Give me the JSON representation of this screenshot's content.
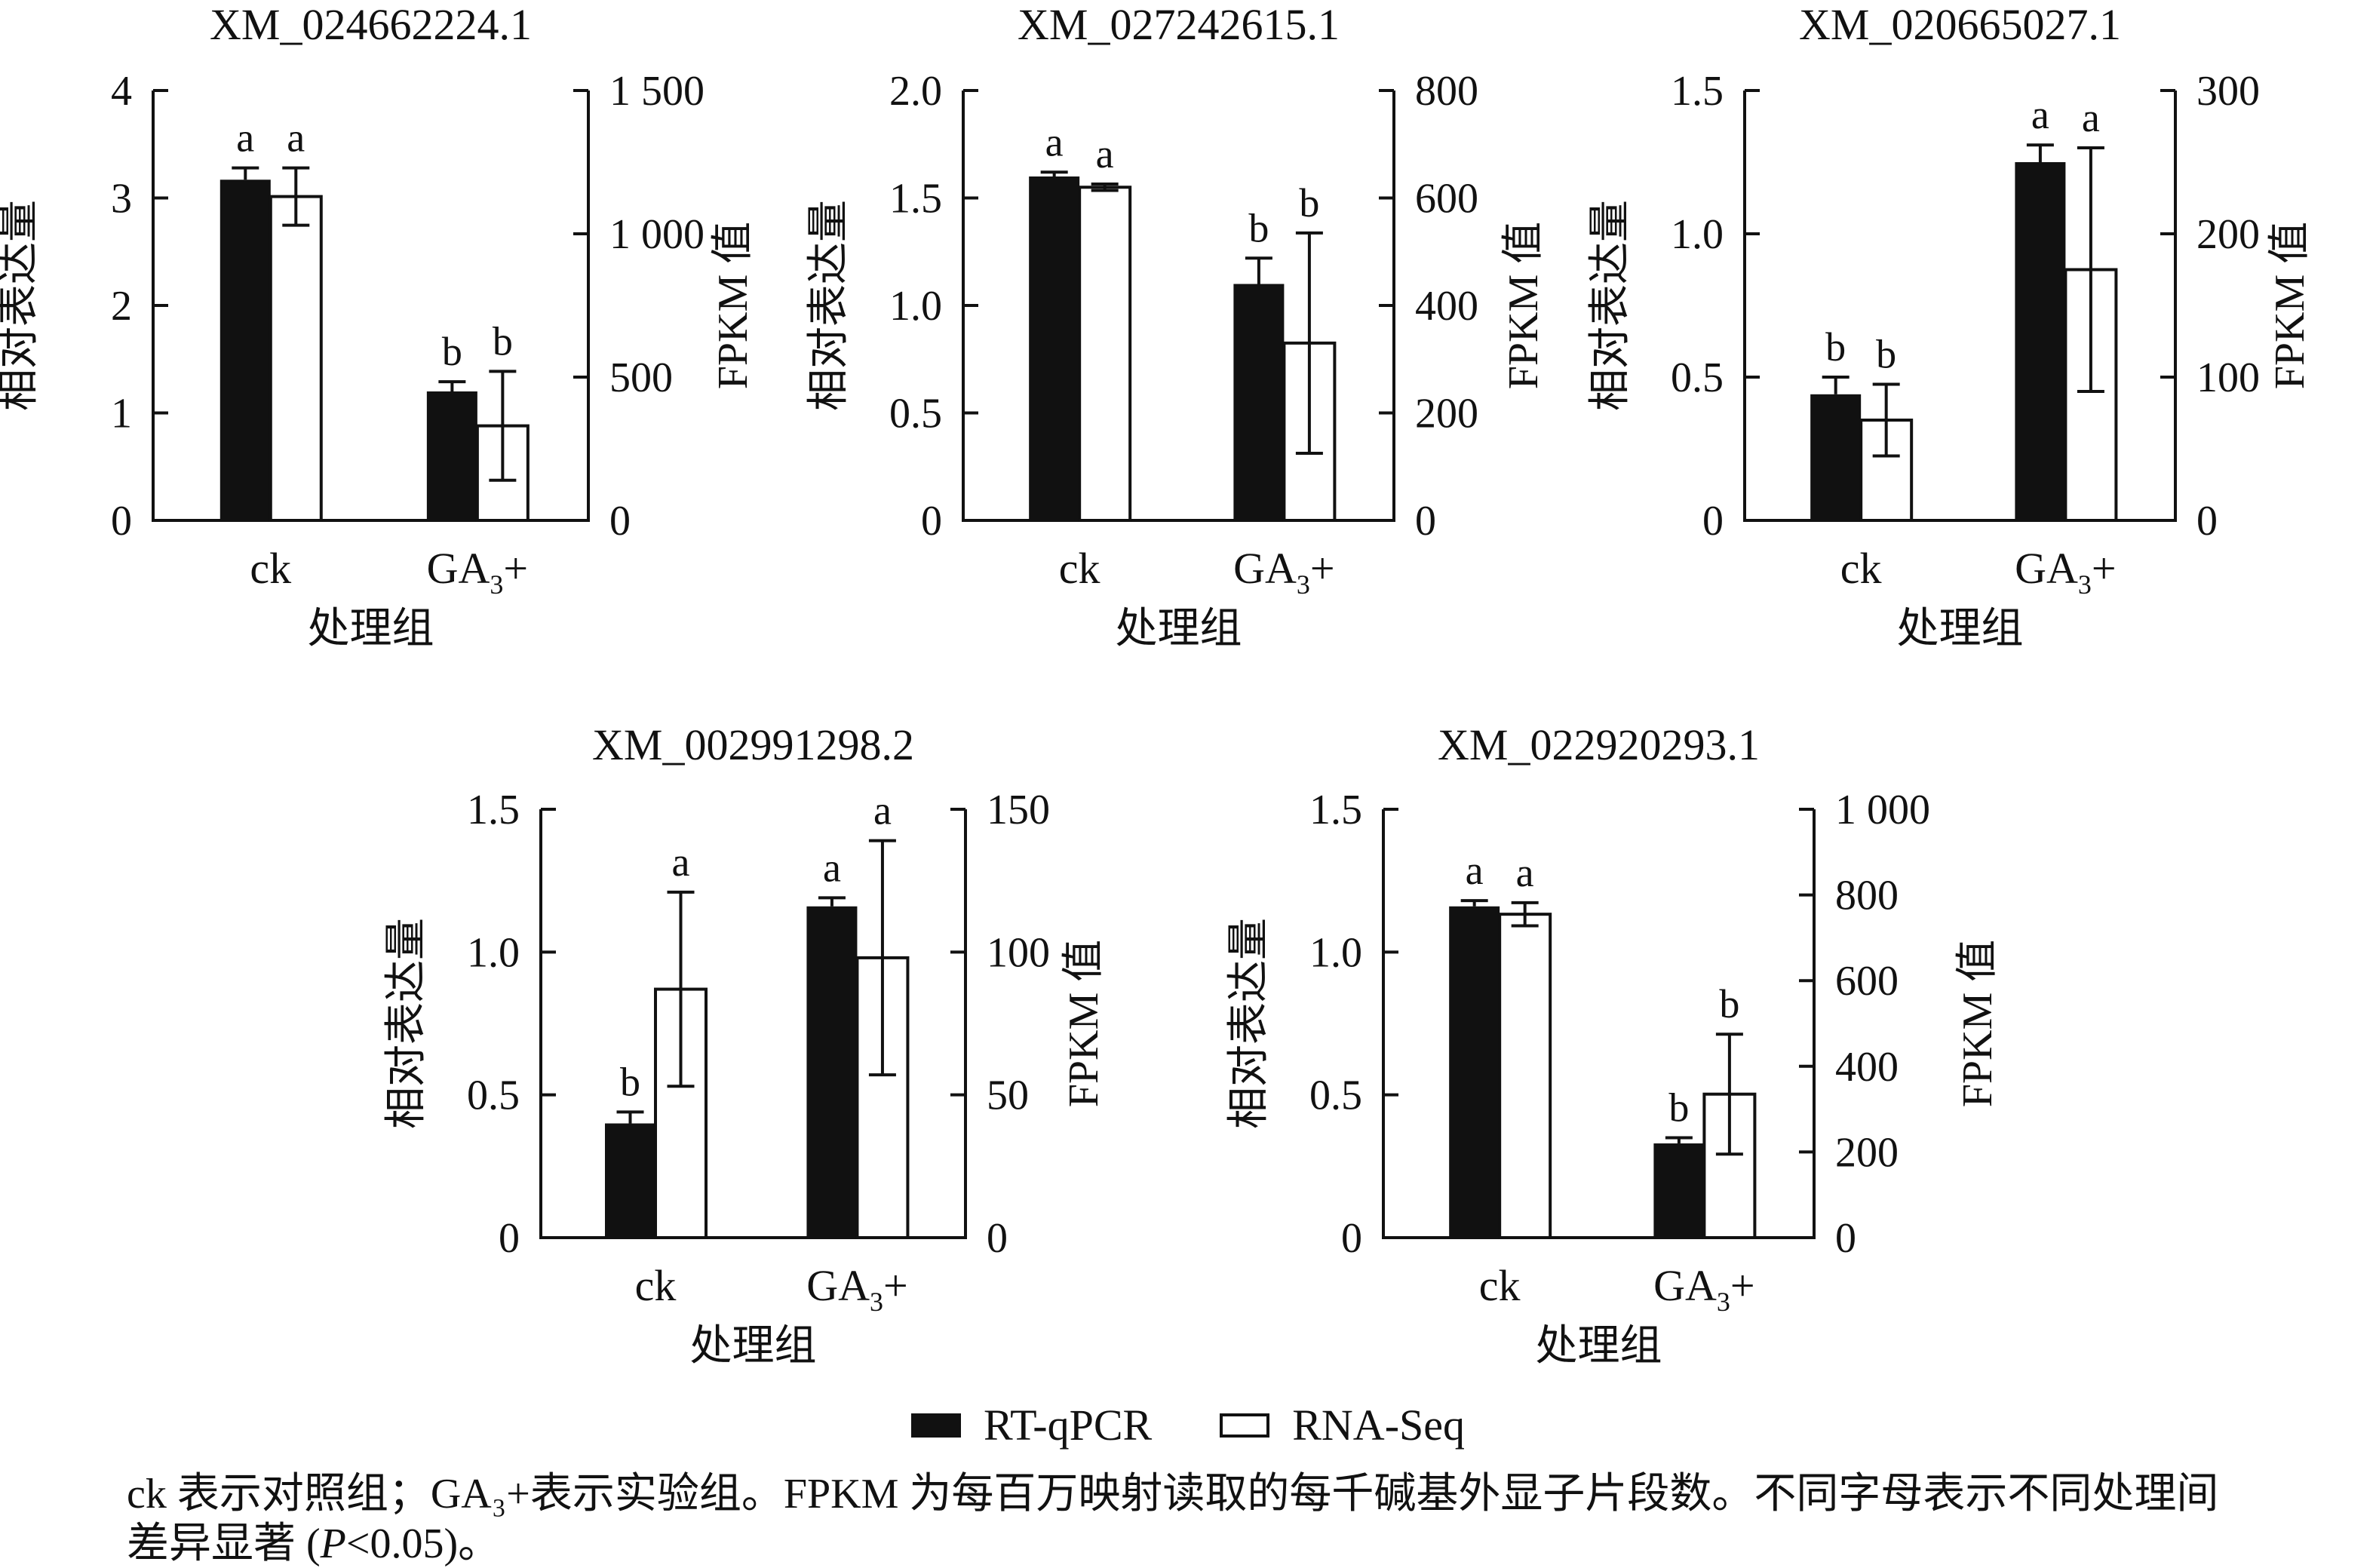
{
  "axis_labels": {
    "left": "相对表达量",
    "right": "FPKM 值",
    "x": "处理组"
  },
  "categories": [
    "ck",
    "GA₃+"
  ],
  "colors": {
    "bar_fill": "#111111",
    "bar_outline": "#111111",
    "axis": "#111111",
    "text": "#111111"
  },
  "legend": {
    "items": [
      {
        "label": "RT-qPCR",
        "swatch": "filled"
      },
      {
        "label": "RNA-Seq",
        "swatch": "outlined"
      }
    ]
  },
  "caption": {
    "line1": "ck 表示对照组；GA₃+表示实验组。FPKM 为每百万映射读取的每千碱基外显子片段数。不同字母表示不同处理间",
    "line2_prefix": "差异显著 (",
    "line2_italic": "P",
    "line2_suffix": "<0.05)。"
  },
  "chart_data": [
    {
      "type": "bar",
      "title": "XM_024662224.1",
      "categories": [
        "ck",
        "GA₃+"
      ],
      "xlabel": "处理组",
      "left_axis": {
        "label": "相对表达量",
        "max": 4,
        "tick_values": [
          0,
          1,
          2,
          3,
          4
        ],
        "tick_labels": [
          "0",
          "1",
          "2",
          "3",
          "4"
        ]
      },
      "right_axis": {
        "label": "FPKM 值",
        "max": 1500,
        "tick_values": [
          0,
          500,
          1000,
          1500
        ],
        "tick_labels": [
          "0",
          "500",
          "1 000",
          "1 500"
        ]
      },
      "series": [
        {
          "name": "RT-qPCR",
          "axis": "left",
          "fill": "black",
          "values": [
            3.17,
            1.2
          ],
          "errors": [
            0.11,
            0.09
          ],
          "letters": [
            "a",
            "b"
          ]
        },
        {
          "name": "RNA-Seq",
          "axis": "right",
          "fill": "white",
          "values": [
            1130,
            330
          ],
          "errors": [
            100,
            190
          ],
          "letters": [
            "a",
            "b"
          ]
        }
      ]
    },
    {
      "type": "bar",
      "title": "XM_027242615.1",
      "categories": [
        "ck",
        "GA₃+"
      ],
      "xlabel": "处理组",
      "left_axis": {
        "label": "相对表达量",
        "max": 2,
        "tick_values": [
          0,
          0.5,
          1,
          1.5,
          2
        ],
        "tick_labels": [
          "0",
          "0.5",
          "1.0",
          "1.5",
          "2.0"
        ]
      },
      "right_axis": {
        "label": "FPKM 值",
        "max": 800,
        "tick_values": [
          0,
          200,
          400,
          600,
          800
        ],
        "tick_labels": [
          "0",
          "200",
          "400",
          "600",
          "800"
        ]
      },
      "series": [
        {
          "name": "RT-qPCR",
          "axis": "left",
          "fill": "black",
          "values": [
            1.6,
            1.1
          ],
          "errors": [
            0.02,
            0.12
          ],
          "letters": [
            "a",
            "b"
          ]
        },
        {
          "name": "RNA-Seq",
          "axis": "right",
          "fill": "white",
          "values": [
            620,
            330
          ],
          "errors": [
            6,
            205
          ],
          "letters": [
            "a",
            "b"
          ]
        }
      ]
    },
    {
      "type": "bar",
      "title": "XM_020665027.1",
      "categories": [
        "ck",
        "GA₃+"
      ],
      "xlabel": "处理组",
      "left_axis": {
        "label": "相对表达量",
        "max": 1.5,
        "tick_values": [
          0,
          0.5,
          1,
          1.5
        ],
        "tick_labels": [
          "0",
          "0.5",
          "1.0",
          "1.5"
        ]
      },
      "right_axis": {
        "label": "FPKM 值",
        "max": 300,
        "tick_values": [
          0,
          100,
          200,
          300
        ],
        "tick_labels": [
          "0",
          "100",
          "200",
          "300"
        ]
      },
      "series": [
        {
          "name": "RT-qPCR",
          "axis": "left",
          "fill": "black",
          "values": [
            0.44,
            1.25
          ],
          "errors": [
            0.06,
            0.06
          ],
          "letters": [
            "b",
            "a"
          ]
        },
        {
          "name": "RNA-Seq",
          "axis": "right",
          "fill": "white",
          "values": [
            70,
            175
          ],
          "errors": [
            25,
            85
          ],
          "letters": [
            "b",
            "a"
          ]
        }
      ]
    },
    {
      "type": "bar",
      "title": "XM_002991298.2",
      "categories": [
        "ck",
        "GA₃+"
      ],
      "xlabel": "处理组",
      "left_axis": {
        "label": "相对表达量",
        "max": 1.5,
        "tick_values": [
          0,
          0.5,
          1,
          1.5
        ],
        "tick_labels": [
          "0",
          "0.5",
          "1.0",
          "1.5"
        ]
      },
      "right_axis": {
        "label": "FPKM 值",
        "max": 150,
        "tick_values": [
          0,
          50,
          100,
          150
        ],
        "tick_labels": [
          "0",
          "50",
          "100",
          "150"
        ]
      },
      "series": [
        {
          "name": "RT-qPCR",
          "axis": "left",
          "fill": "black",
          "values": [
            0.4,
            1.16
          ],
          "errors": [
            0.04,
            0.03
          ],
          "letters": [
            "b",
            "a"
          ]
        },
        {
          "name": "RNA-Seq",
          "axis": "right",
          "fill": "white",
          "values": [
            87,
            98
          ],
          "errors": [
            34,
            41
          ],
          "letters": [
            "a",
            "a"
          ]
        }
      ]
    },
    {
      "type": "bar",
      "title": "XM_022920293.1",
      "categories": [
        "ck",
        "GA₃+"
      ],
      "xlabel": "处理组",
      "left_axis": {
        "label": "相对表达量",
        "max": 1.5,
        "tick_values": [
          0,
          0.5,
          1,
          1.5
        ],
        "tick_labels": [
          "0",
          "0.5",
          "1.0",
          "1.5"
        ]
      },
      "right_axis": {
        "label": "FPKM 值",
        "max": 1000,
        "tick_values": [
          0,
          200,
          400,
          600,
          800,
          1000
        ],
        "tick_labels": [
          "0",
          "200",
          "400",
          "600",
          "800",
          "1 000"
        ]
      },
      "series": [
        {
          "name": "RT-qPCR",
          "axis": "left",
          "fill": "black",
          "values": [
            1.16,
            0.33
          ],
          "errors": [
            0.02,
            0.02
          ],
          "letters": [
            "a",
            "b"
          ]
        },
        {
          "name": "RNA-Seq",
          "axis": "right",
          "fill": "white",
          "values": [
            755,
            335
          ],
          "errors": [
            27,
            140
          ],
          "letters": [
            "a",
            "b"
          ]
        }
      ]
    }
  ]
}
